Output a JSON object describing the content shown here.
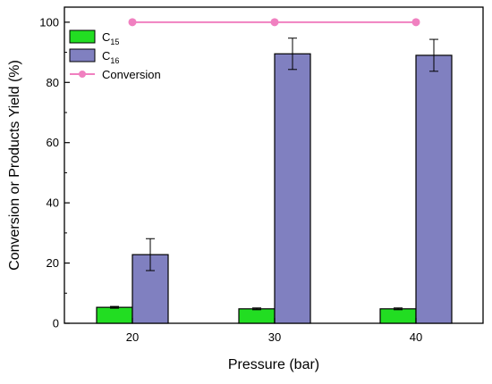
{
  "chart_data": {
    "type": "bar",
    "xlabel": "Pressure (bar)",
    "ylabel": "Conversion or Products Yield (%)",
    "categories": [
      "20",
      "30",
      "40"
    ],
    "ylim": [
      0,
      105
    ],
    "yticks": [
      "0",
      "20",
      "40",
      "60",
      "80",
      "100"
    ],
    "series": [
      {
        "name": "C15",
        "name_main": "C",
        "name_sub": "15",
        "kind": "bar",
        "color": "#22dd22",
        "values": [
          5.3,
          4.8,
          4.8
        ],
        "errors": [
          0.3,
          0.3,
          0.3
        ]
      },
      {
        "name": "C16",
        "name_main": "C",
        "name_sub": "16",
        "kind": "bar",
        "color": "#8080c0",
        "values": [
          22.8,
          89.5,
          89.0
        ],
        "errors": [
          5.3,
          5.2,
          5.3
        ]
      },
      {
        "name": "Conversion",
        "kind": "line",
        "color": "#f080c0",
        "values": [
          100,
          100,
          100
        ]
      }
    ],
    "legend": {
      "position": "top-left"
    },
    "grid": false
  }
}
